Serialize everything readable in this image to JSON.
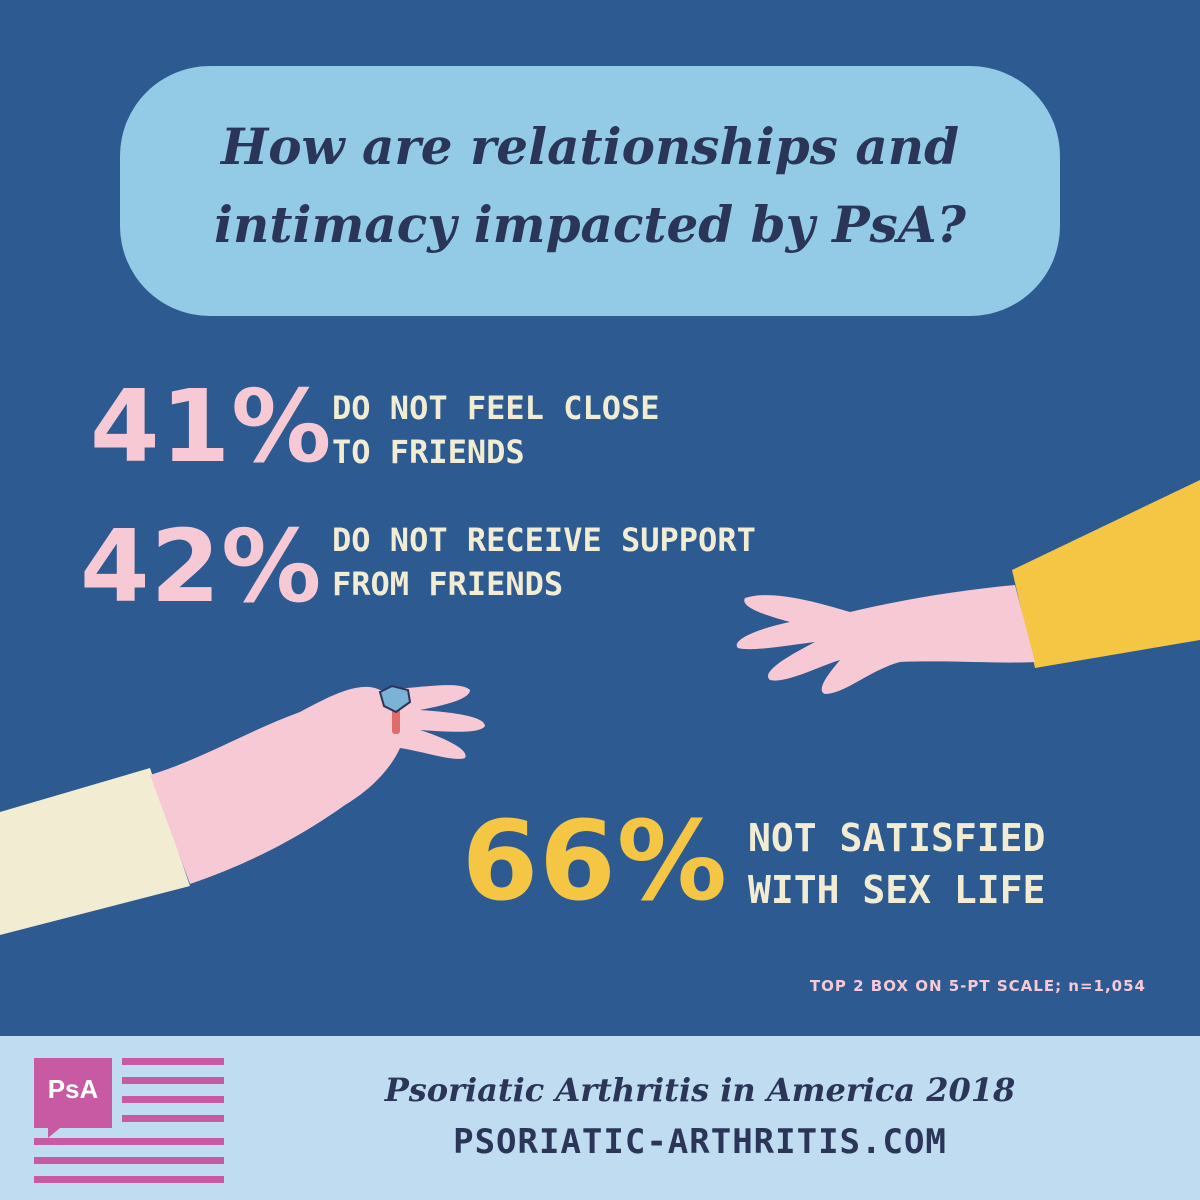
{
  "title": "How are relationships and intimacy impacted by PsA?",
  "stats": [
    {
      "value": "41%",
      "line1": "DO NOT FEEL CLOSE",
      "line2": "TO FRIENDS"
    },
    {
      "value": "42%",
      "line1": "DO NOT RECEIVE SUPPORT",
      "line2": "FROM FRIENDS"
    },
    {
      "value": "66%",
      "line1": "NOT SATISFIED",
      "line2": "WITH SEX LIFE"
    }
  ],
  "footnote": "TOP 2 BOX ON 5-PT SCALE; n=1,054",
  "footer": {
    "logo_text": "PsA",
    "title": "Psoriatic Arthritis in America 2018",
    "url": "PSORIATIC-ARTHRITIS.COM"
  },
  "colors": {
    "background": "#2c5a91",
    "bubble": "#93cbe7",
    "pink": "#f7c9d4",
    "yellow": "#f5c544",
    "cream": "#f2ecd3",
    "navy_text": "#2b3558",
    "footer_bg": "#bfdcf0",
    "logo": "#c75aa3"
  },
  "illustrations": [
    "left-reaching-hand-with-ring",
    "right-reaching-hand-yellow-sleeve"
  ]
}
